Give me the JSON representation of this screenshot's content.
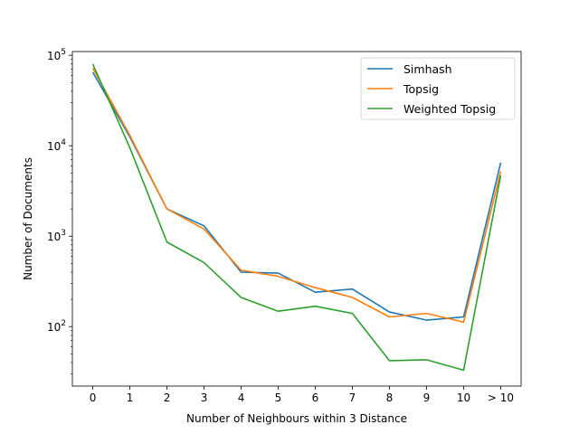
{
  "chart_data": {
    "type": "line",
    "title": "",
    "xlabel": "Number of Neighbours within 3 Distance",
    "ylabel": "Number of Documents",
    "categories": [
      "0",
      "1",
      "2",
      "3",
      "4",
      "5",
      "6",
      "7",
      "8",
      "9",
      "10",
      "> 10"
    ],
    "yscale": "log",
    "ylim": [
      22,
      110000
    ],
    "yticks": [
      {
        "value": 100,
        "base": "10",
        "exp": "2"
      },
      {
        "value": 1000,
        "base": "10",
        "exp": "3"
      },
      {
        "value": 10000,
        "base": "10",
        "exp": "4"
      },
      {
        "value": 100000,
        "base": "10",
        "exp": "5"
      }
    ],
    "grid": false,
    "legend_position": "top-right",
    "series": [
      {
        "name": "Simhash",
        "color": "#1f77b4",
        "values": [
          65000,
          12500,
          2000,
          1300,
          400,
          390,
          240,
          260,
          145,
          118,
          128,
          6500
        ]
      },
      {
        "name": "Topsig",
        "color": "#ff7f0e",
        "values": [
          72000,
          13000,
          2000,
          1200,
          420,
          360,
          270,
          210,
          128,
          140,
          112,
          5200
        ]
      },
      {
        "name": "Weighted Topsig",
        "color": "#2ca02c",
        "values": [
          80000,
          9500,
          860,
          510,
          210,
          148,
          168,
          140,
          42,
          43,
          33,
          4700
        ]
      }
    ]
  }
}
